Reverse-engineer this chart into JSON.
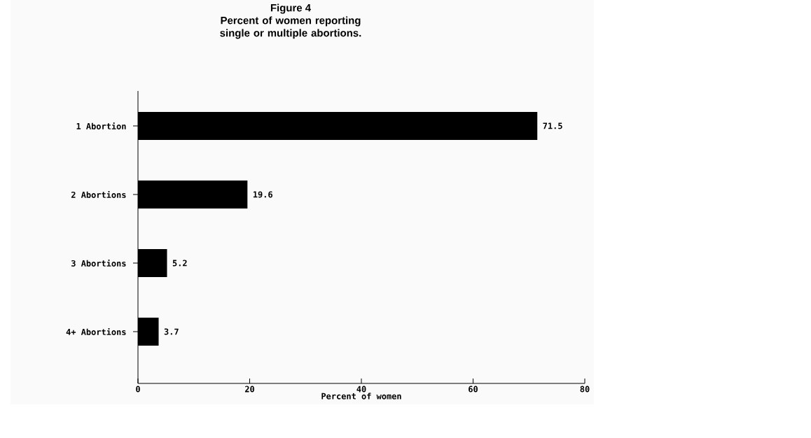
{
  "chart_data": {
    "type": "bar",
    "orientation": "horizontal",
    "title": "Figure 4",
    "subtitle": "Percent of women reporting single or multiple abortions.",
    "categories": [
      "1 Abortion",
      "2 Abortions",
      "3 Abortions",
      "4+ Abortions"
    ],
    "values": [
      71.5,
      19.6,
      5.2,
      3.7
    ],
    "color": "#000000",
    "xlabel": "Percent of women",
    "xlim": [
      0,
      80
    ],
    "xticks": [
      0,
      20,
      40,
      60,
      80
    ],
    "data_labels": true,
    "grid": false
  }
}
